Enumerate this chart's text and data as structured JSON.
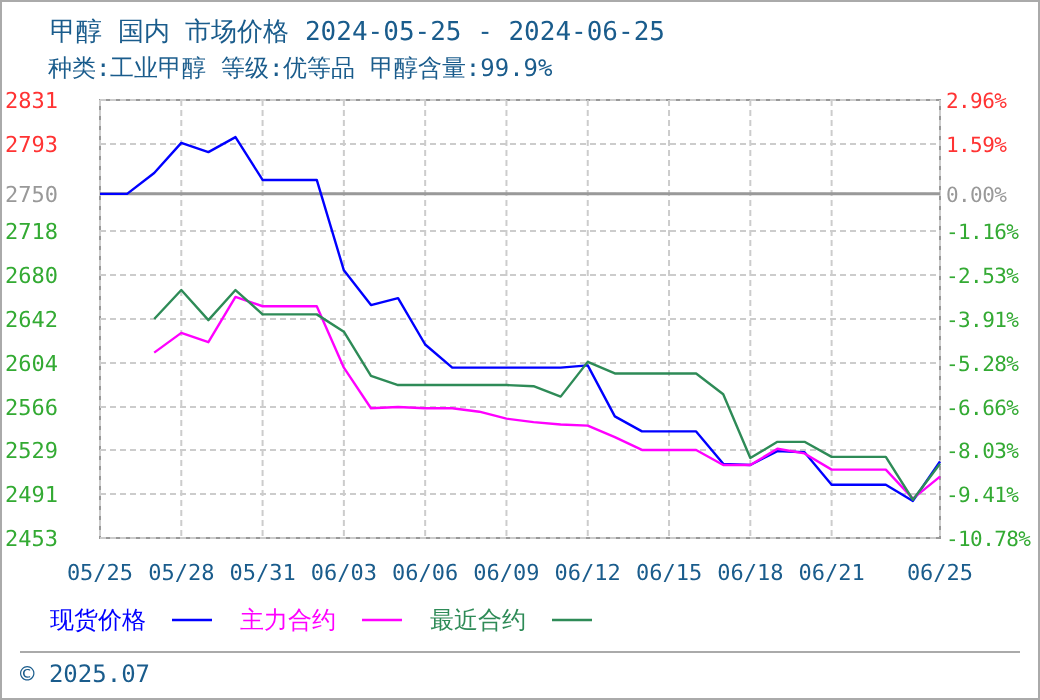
{
  "chart_data": {
    "type": "line",
    "title": "甲醇  国内  市场价格  2024-05-25 - 2024-06-25",
    "subtitle": "种类:工业甲醇  等级:优等品  甲醇含量:99.9%",
    "xlim": [
      "2024-05-25",
      "2024-06-25"
    ],
    "xticks": [
      {
        "value": "2024-05-25",
        "label": "05/25"
      },
      {
        "value": "2024-05-28",
        "label": "05/28"
      },
      {
        "value": "2024-05-31",
        "label": "05/31"
      },
      {
        "value": "2024-06-03",
        "label": "06/03"
      },
      {
        "value": "2024-06-06",
        "label": "06/06"
      },
      {
        "value": "2024-06-09",
        "label": "06/09"
      },
      {
        "value": "2024-06-12",
        "label": "06/12"
      },
      {
        "value": "2024-06-15",
        "label": "06/15"
      },
      {
        "value": "2024-06-18",
        "label": "06/18"
      },
      {
        "value": "2024-06-21",
        "label": "06/21"
      },
      {
        "value": "2024-06-25",
        "label": "06/25"
      }
    ],
    "ylim": [
      2453,
      2831
    ],
    "yticks": [
      2453,
      2491,
      2529,
      2566,
      2604,
      2642,
      2680,
      2718,
      2750,
      2793,
      2831
    ],
    "y2lim": [
      -10.78,
      2.96
    ],
    "y2ticks": [
      {
        "value": -10.78,
        "label": "-10.78%"
      },
      {
        "value": -9.41,
        "label": "-9.41%"
      },
      {
        "value": -8.03,
        "label": "-8.03%"
      },
      {
        "value": -6.66,
        "label": "-6.66%"
      },
      {
        "value": -5.28,
        "label": "-5.28%"
      },
      {
        "value": -3.91,
        "label": "-3.91%"
      },
      {
        "value": -2.53,
        "label": "-2.53%"
      },
      {
        "value": -1.16,
        "label": "-1.16%"
      },
      {
        "value": 0,
        "label": "0.00%"
      },
      {
        "value": 1.59,
        "label": "1.59%"
      },
      {
        "value": 2.96,
        "label": "2.96%"
      }
    ],
    "ref_lines": [
      {
        "axis": "y",
        "value": 2750,
        "color": "#999999"
      }
    ],
    "grid": true,
    "legend": "bottom",
    "marker": "none",
    "line_style": "solid",
    "annotations": [
      "© 2025.07"
    ],
    "series": [
      {
        "name": "现货价格",
        "color": "#0000ff",
        "x": [
          "2024-05-25",
          "2024-05-26",
          "2024-05-27",
          "2024-05-28",
          "2024-05-29",
          "2024-05-30",
          "2024-05-31",
          "2024-06-01",
          "2024-06-02",
          "2024-06-03",
          "2024-06-04",
          "2024-06-05",
          "2024-06-06",
          "2024-06-07",
          "2024-06-08",
          "2024-06-09",
          "2024-06-10",
          "2024-06-11",
          "2024-06-12",
          "2024-06-13",
          "2024-06-14",
          "2024-06-15",
          "2024-06-16",
          "2024-06-17",
          "2024-06-18",
          "2024-06-19",
          "2024-06-20",
          "2024-06-21",
          "2024-06-22",
          "2024-06-23",
          "2024-06-24",
          "2024-06-25"
        ],
        "values": [
          2750,
          2750,
          2768,
          2794,
          2786,
          2799,
          2762,
          2762,
          2762,
          2684,
          2654,
          2660,
          2620,
          2600,
          2600,
          2600,
          2600,
          2600,
          2602,
          2558,
          2545,
          2545,
          2545,
          2517,
          2516,
          2528,
          2527,
          2499,
          2499,
          2499,
          2485,
          2519
        ]
      },
      {
        "name": "主力合约",
        "color": "#ff00ff",
        "x": [
          "2024-05-27",
          "2024-05-28",
          "2024-05-29",
          "2024-05-30",
          "2024-05-31",
          "2024-06-01",
          "2024-06-02",
          "2024-06-03",
          "2024-06-04",
          "2024-06-05",
          "2024-06-06",
          "2024-06-07",
          "2024-06-08",
          "2024-06-09",
          "2024-06-10",
          "2024-06-11",
          "2024-06-12",
          "2024-06-13",
          "2024-06-14",
          "2024-06-15",
          "2024-06-16",
          "2024-06-17",
          "2024-06-18",
          "2024-06-19",
          "2024-06-20",
          "2024-06-21",
          "2024-06-22",
          "2024-06-23",
          "2024-06-24",
          "2024-06-25"
        ],
        "values": [
          2613,
          2630,
          2622,
          2661,
          2653,
          2653,
          2653,
          2600,
          2565,
          2566,
          2565,
          2565,
          2562,
          2556,
          2553,
          2551,
          2550,
          2540,
          2529,
          2529,
          2529,
          2516,
          2516,
          2530,
          2526,
          2512,
          2512,
          2512,
          2487,
          2506
        ]
      },
      {
        "name": "最近合约",
        "color": "#2e8b57",
        "x": [
          "2024-05-27",
          "2024-05-28",
          "2024-05-29",
          "2024-05-30",
          "2024-05-31",
          "2024-06-01",
          "2024-06-02",
          "2024-06-03",
          "2024-06-04",
          "2024-06-05",
          "2024-06-06",
          "2024-06-07",
          "2024-06-08",
          "2024-06-09",
          "2024-06-10",
          "2024-06-11",
          "2024-06-12",
          "2024-06-13",
          "2024-06-14",
          "2024-06-15",
          "2024-06-16",
          "2024-06-17",
          "2024-06-18",
          "2024-06-19",
          "2024-06-20",
          "2024-06-21",
          "2024-06-22",
          "2024-06-23",
          "2024-06-24",
          "2024-06-25"
        ],
        "values": [
          2642,
          2667,
          2641,
          2667,
          2646,
          2646,
          2646,
          2631,
          2593,
          2585,
          2585,
          2585,
          2585,
          2585,
          2584,
          2575,
          2605,
          2595,
          2595,
          2595,
          2595,
          2577,
          2522,
          2536,
          2536,
          2523,
          2523,
          2523,
          2486,
          2517
        ]
      }
    ]
  }
}
